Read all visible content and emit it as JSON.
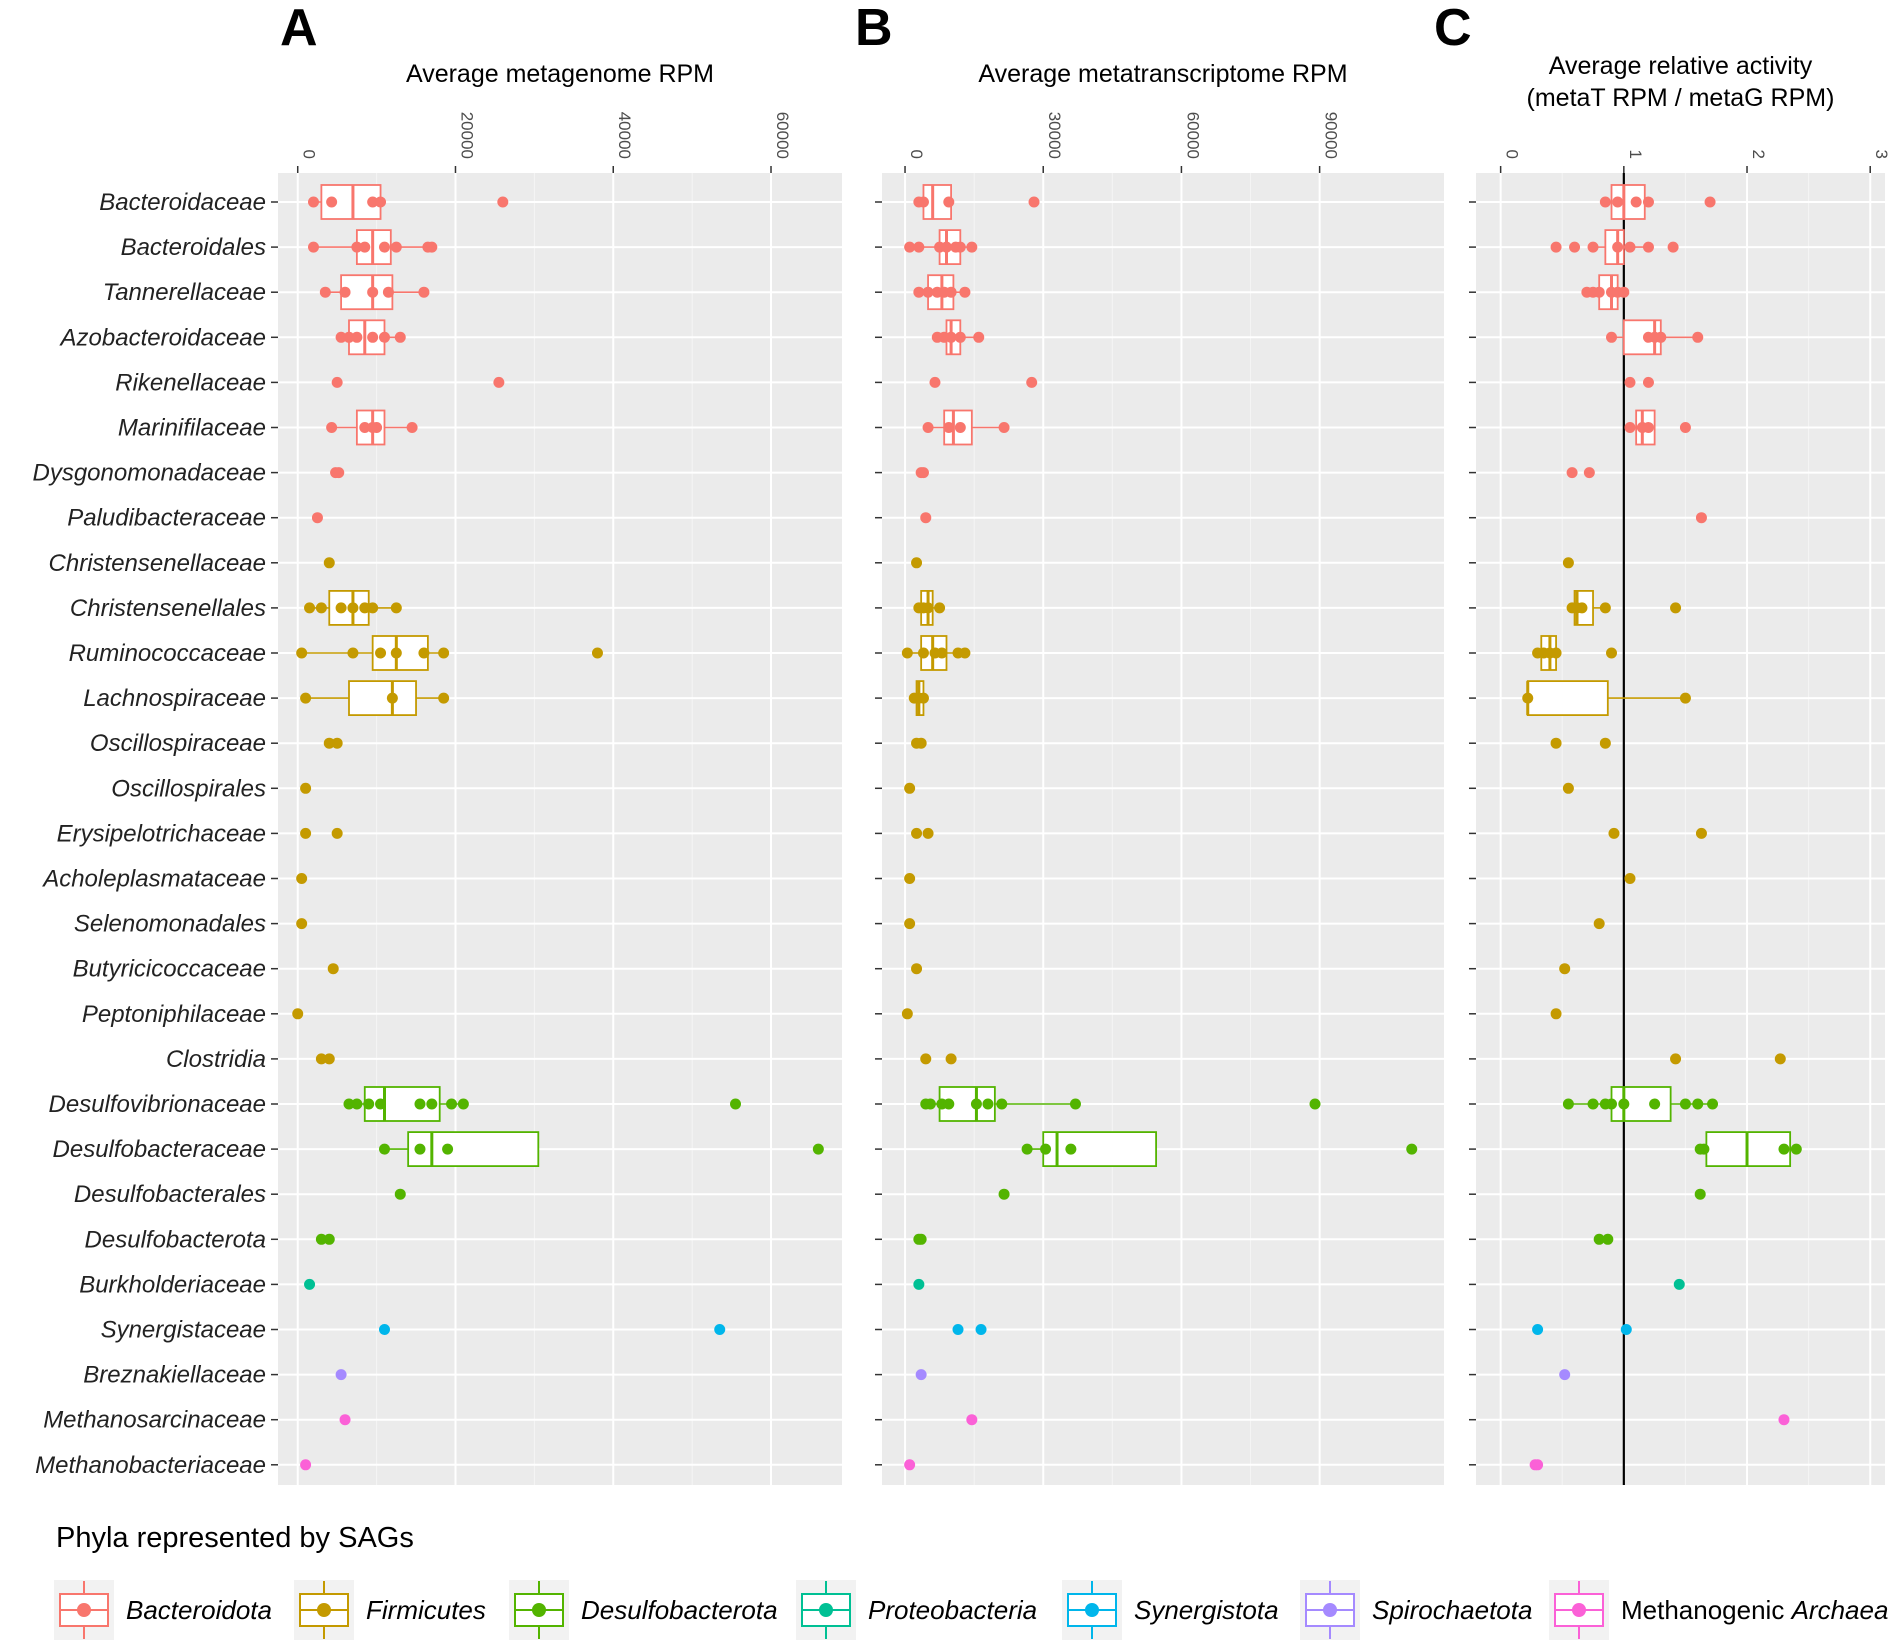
{
  "legend": {
    "title": "Phyla represented by SAGs",
    "items": [
      {
        "name": "Bacteroidota",
        "color": "#F8766D"
      },
      {
        "name": "Firmicutes",
        "color": "#C49A00"
      },
      {
        "name": "Desulfobacterota",
        "color": "#53B400"
      },
      {
        "name": "Proteobacteria",
        "color": "#00C094"
      },
      {
        "name": "Synergistota",
        "color": "#00B6EB"
      },
      {
        "name": "Spirochaetota",
        "color": "#A58AFF"
      },
      {
        "name": "Methanogenic",
        "suffix": "Archaea",
        "color": "#FB61D7"
      }
    ]
  },
  "chart_data": [
    {
      "panel": "A",
      "type": "box+scatter",
      "title": "Average metagenome RPM",
      "xlim": [
        -2500,
        69000
      ],
      "ticks": [
        0,
        20000,
        40000,
        60000
      ],
      "tick_labels": [
        "0",
        "20000",
        "40000",
        "60000"
      ],
      "reference_line": null,
      "categories": [
        {
          "name": "Bacteroidaceae",
          "phylum": "Bacteroidota",
          "points": [
            2000,
            4300,
            9500,
            10500,
            26000
          ],
          "box": [
            3000,
            7000,
            10500
          ]
        },
        {
          "name": "Bacteroidales",
          "phylum": "Bacteroidota",
          "points": [
            2000,
            7500,
            8500,
            11000,
            12500,
            16500,
            17000
          ],
          "box": [
            7500,
            9500,
            11800
          ]
        },
        {
          "name": "Tannerellaceae",
          "phylum": "Bacteroidota",
          "points": [
            3500,
            6000,
            9500,
            11500,
            16000
          ],
          "box": [
            5500,
            9500,
            12000
          ]
        },
        {
          "name": "Azobacteroidaceae",
          "phylum": "Bacteroidota",
          "points": [
            5500,
            6500,
            7500,
            9500,
            11000,
            13000
          ],
          "box": [
            6500,
            8500,
            11000
          ]
        },
        {
          "name": "Rikenellaceae",
          "phylum": "Bacteroidota",
          "points": [
            5000,
            25500
          ]
        },
        {
          "name": "Marinifilaceae",
          "phylum": "Bacteroidota",
          "points": [
            4300,
            8500,
            9500,
            10000,
            14500
          ],
          "box": [
            7500,
            9500,
            11000
          ]
        },
        {
          "name": "Dysgonomonadaceae",
          "phylum": "Bacteroidota",
          "points": [
            4800,
            5200
          ]
        },
        {
          "name": "Paludibacteraceae",
          "phylum": "Bacteroidota",
          "points": [
            2500
          ]
        },
        {
          "name": "Christensenellaceae",
          "phylum": "Firmicutes",
          "points": [
            4000
          ]
        },
        {
          "name": "Christensenellales",
          "phylum": "Firmicutes",
          "points": [
            1500,
            3000,
            5500,
            7000,
            8500,
            9500,
            12500
          ],
          "box": [
            4000,
            7000,
            9000
          ]
        },
        {
          "name": "Ruminococcaceae",
          "phylum": "Firmicutes",
          "points": [
            500,
            7000,
            10500,
            12500,
            16000,
            18500,
            38000
          ],
          "box": [
            9500,
            12500,
            16500
          ]
        },
        {
          "name": "Lachnospiraceae",
          "phylum": "Firmicutes",
          "points": [
            1000,
            12000,
            18500
          ],
          "box": [
            6500,
            12000,
            15000
          ]
        },
        {
          "name": "Oscillospiraceae",
          "phylum": "Firmicutes",
          "points": [
            4000,
            5000
          ]
        },
        {
          "name": "Oscillospirales",
          "phylum": "Firmicutes",
          "points": [
            1000
          ]
        },
        {
          "name": "Erysipelotrichaceae",
          "phylum": "Firmicutes",
          "points": [
            1000,
            5000
          ]
        },
        {
          "name": "Acholeplasmataceae",
          "phylum": "Firmicutes",
          "points": [
            500
          ]
        },
        {
          "name": "Selenomonadales",
          "phylum": "Firmicutes",
          "points": [
            500
          ]
        },
        {
          "name": "Butyricicoccaceae",
          "phylum": "Firmicutes",
          "points": [
            4500
          ]
        },
        {
          "name": "Peptoniphilaceae",
          "phylum": "Firmicutes",
          "points": [
            0
          ]
        },
        {
          "name": "Clostridia",
          "phylum": "Firmicutes",
          "points": [
            3000,
            4000
          ]
        },
        {
          "name": "Desulfovibrionaceae",
          "phylum": "Desulfobacterota",
          "points": [
            6500,
            7500,
            9000,
            10500,
            15500,
            17000,
            19500,
            21000,
            55500
          ],
          "box": [
            8500,
            11000,
            18000
          ]
        },
        {
          "name": "Desulfobacteraceae",
          "phylum": "Desulfobacterota",
          "points": [
            11000,
            15500,
            19000,
            66000
          ],
          "box": [
            14000,
            17000,
            30500
          ]
        },
        {
          "name": "Desulfobacterales",
          "phylum": "Desulfobacterota",
          "points": [
            13000
          ]
        },
        {
          "name": "Desulfobacterota",
          "phylum": "Desulfobacterota",
          "points": [
            3000,
            4000
          ]
        },
        {
          "name": "Burkholderiaceae",
          "phylum": "Proteobacteria",
          "points": [
            1500
          ]
        },
        {
          "name": "Synergistaceae",
          "phylum": "Synergistota",
          "points": [
            11000,
            53500
          ]
        },
        {
          "name": "Breznakiellaceae",
          "phylum": "Spirochaetota",
          "points": [
            5500
          ]
        },
        {
          "name": "Methanosarcinaceae",
          "phylum": "Methanogenic Archaea",
          "points": [
            6000
          ]
        },
        {
          "name": "Methanobacteriaceae",
          "phylum": "Methanogenic Archaea",
          "points": [
            1000
          ]
        }
      ]
    },
    {
      "panel": "B",
      "type": "box+scatter",
      "title": "Average metatranscriptome RPM",
      "xlim": [
        -5000,
        117000
      ],
      "ticks": [
        0,
        30000,
        60000,
        90000
      ],
      "tick_labels": [
        "0",
        "30000",
        "60000",
        "90000"
      ],
      "reference_line": null,
      "categories": [
        {
          "name": "Bacteroidaceae",
          "points": [
            3000,
            4000,
            9500,
            28000
          ],
          "box": [
            4000,
            6000,
            10000
          ]
        },
        {
          "name": "Bacteroidales",
          "points": [
            1000,
            3000,
            7500,
            9000,
            11000,
            12000,
            14500
          ],
          "box": [
            7500,
            9000,
            12000
          ]
        },
        {
          "name": "Tannerellaceae",
          "points": [
            3000,
            5000,
            7000,
            8500,
            10000,
            13000
          ],
          "box": [
            5000,
            8000,
            10500
          ]
        },
        {
          "name": "Azobacteroidaceae",
          "points": [
            7000,
            8500,
            10000,
            12000,
            16000
          ],
          "box": [
            9000,
            10000,
            12000
          ]
        },
        {
          "name": "Rikenellaceae",
          "points": [
            6500,
            27500
          ]
        },
        {
          "name": "Marinifilaceae",
          "points": [
            5000,
            9500,
            12000,
            21500
          ],
          "box": [
            8500,
            10500,
            14500
          ]
        },
        {
          "name": "Dysgonomonadaceae",
          "points": [
            3500,
            4000
          ]
        },
        {
          "name": "Paludibacteraceae",
          "points": [
            4500
          ]
        },
        {
          "name": "Christensenellaceae",
          "points": [
            2500
          ]
        },
        {
          "name": "Christensenellales",
          "points": [
            3000,
            4000,
            5000,
            7500
          ],
          "box": [
            3500,
            5000,
            6000
          ]
        },
        {
          "name": "Ruminococcaceae",
          "points": [
            500,
            4000,
            6500,
            8000,
            11500,
            13000
          ],
          "box": [
            3500,
            6000,
            9000
          ]
        },
        {
          "name": "Lachnospiraceae",
          "points": [
            2000,
            3000,
            4000
          ],
          "box": [
            2500,
            3000,
            4000
          ]
        },
        {
          "name": "Oscillospiraceae",
          "points": [
            2500,
            3500
          ]
        },
        {
          "name": "Oscillospirales",
          "points": [
            1000
          ]
        },
        {
          "name": "Erysipelotrichaceae",
          "points": [
            2500,
            5000
          ]
        },
        {
          "name": "Acholeplasmataceae",
          "points": [
            1000
          ]
        },
        {
          "name": "Selenomonadales",
          "points": [
            1000
          ]
        },
        {
          "name": "Butyricicoccaceae",
          "points": [
            2500
          ]
        },
        {
          "name": "Peptoniphilaceae",
          "points": [
            500
          ]
        },
        {
          "name": "Clostridia",
          "points": [
            4500,
            10000
          ]
        },
        {
          "name": "Desulfovibrionaceae",
          "points": [
            4500,
            5500,
            8000,
            9500,
            15500,
            18000,
            21000,
            37000,
            89000
          ],
          "box": [
            7500,
            15500,
            19500
          ]
        },
        {
          "name": "Desulfobacteraceae",
          "points": [
            26500,
            30500,
            36000,
            110000
          ],
          "box": [
            30000,
            33000,
            54500
          ]
        },
        {
          "name": "Desulfobacterales",
          "points": [
            21500
          ]
        },
        {
          "name": "Desulfobacterota",
          "points": [
            3000,
            3500
          ]
        },
        {
          "name": "Burkholderiaceae",
          "points": [
            3000
          ]
        },
        {
          "name": "Synergistaceae",
          "points": [
            11500,
            16500
          ]
        },
        {
          "name": "Breznakiellaceae",
          "points": [
            3500
          ]
        },
        {
          "name": "Methanosarcinaceae",
          "points": [
            14500
          ]
        },
        {
          "name": "Methanobacteriaceae",
          "points": [
            1000
          ]
        }
      ]
    },
    {
      "panel": "C",
      "type": "box+scatter",
      "title": "Average relative activity",
      "subtitle": "(metaT RPM / metaG RPM)",
      "xlim": [
        -0.2,
        3.12
      ],
      "ticks": [
        0,
        1,
        2,
        3
      ],
      "tick_labels": [
        "0",
        "1",
        "2",
        "3"
      ],
      "reference_line": 1,
      "categories": [
        {
          "name": "Bacteroidaceae",
          "points": [
            0.85,
            0.95,
            1.1,
            1.2,
            1.7
          ],
          "box": [
            0.9,
            1.0,
            1.17
          ]
        },
        {
          "name": "Bacteroidales",
          "points": [
            0.45,
            0.6,
            0.75,
            0.95,
            1.05,
            1.2,
            1.4
          ],
          "box": [
            0.85,
            0.95,
            1.0
          ]
        },
        {
          "name": "Tannerellaceae",
          "points": [
            0.7,
            0.75,
            0.8,
            0.9,
            0.95,
            1.0
          ],
          "box": [
            0.8,
            0.9,
            0.95
          ]
        },
        {
          "name": "Azobacteroidaceae",
          "points": [
            0.9,
            1.2,
            1.25,
            1.3,
            1.6
          ],
          "box": [
            1.0,
            1.25,
            1.3
          ]
        },
        {
          "name": "Rikenellaceae",
          "points": [
            1.05,
            1.2
          ]
        },
        {
          "name": "Marinifilaceae",
          "points": [
            1.05,
            1.15,
            1.2,
            1.5
          ],
          "box": [
            1.1,
            1.15,
            1.25
          ]
        },
        {
          "name": "Dysgonomonadaceae",
          "points": [
            0.58,
            0.72
          ]
        },
        {
          "name": "Paludibacteraceae",
          "points": [
            1.63
          ]
        },
        {
          "name": "Christensenellaceae",
          "points": [
            0.55
          ]
        },
        {
          "name": "Christensenellales",
          "points": [
            0.58,
            0.62,
            0.66,
            0.85,
            1.42
          ],
          "box": [
            0.6,
            0.62,
            0.75
          ]
        },
        {
          "name": "Ruminococcaceae",
          "points": [
            0.3,
            0.35,
            0.4,
            0.45,
            0.9
          ],
          "box": [
            0.33,
            0.4,
            0.45
          ]
        },
        {
          "name": "Lachnospiraceae",
          "points": [
            0.22,
            1.5
          ],
          "box": [
            0.22,
            0.22,
            0.87
          ]
        },
        {
          "name": "Oscillospiraceae",
          "points": [
            0.45,
            0.85
          ]
        },
        {
          "name": "Oscillospirales",
          "points": [
            0.55
          ]
        },
        {
          "name": "Erysipelotrichaceae",
          "points": [
            0.92,
            1.63
          ]
        },
        {
          "name": "Acholeplasmataceae",
          "points": [
            1.05
          ]
        },
        {
          "name": "Selenomonadales",
          "points": [
            0.8
          ]
        },
        {
          "name": "Butyricicoccaceae",
          "points": [
            0.52
          ]
        },
        {
          "name": "Peptoniphilaceae",
          "points": [
            0.45
          ]
        },
        {
          "name": "Clostridia",
          "points": [
            1.42,
            2.27
          ]
        },
        {
          "name": "Desulfovibrionaceae",
          "points": [
            0.55,
            0.75,
            0.85,
            0.9,
            1.0,
            1.25,
            1.5,
            1.6,
            1.72
          ],
          "box": [
            0.9,
            1.0,
            1.38
          ]
        },
        {
          "name": "Desulfobacteraceae",
          "points": [
            1.62,
            1.65,
            2.3,
            2.4
          ],
          "box": [
            1.67,
            2.0,
            2.35
          ]
        },
        {
          "name": "Desulfobacterales",
          "points": [
            1.62
          ]
        },
        {
          "name": "Desulfobacterota",
          "points": [
            0.8,
            0.87
          ]
        },
        {
          "name": "Burkholderiaceae",
          "points": [
            1.45
          ]
        },
        {
          "name": "Synergistaceae",
          "points": [
            0.3,
            1.02
          ]
        },
        {
          "name": "Breznakiellaceae",
          "points": [
            0.52
          ]
        },
        {
          "name": "Methanosarcinaceae",
          "points": [
            2.3
          ]
        },
        {
          "name": "Methanobacteriaceae",
          "points": [
            0.28,
            0.3
          ]
        }
      ]
    }
  ]
}
